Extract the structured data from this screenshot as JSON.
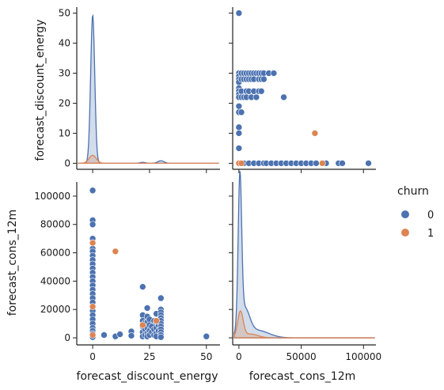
{
  "chart_data": {
    "type": "pairplot",
    "variables": [
      "forecast_discount_energy",
      "forecast_cons_12m"
    ],
    "hue": "churn",
    "legend": {
      "title": "churn",
      "placement": "right",
      "entries": [
        {
          "label": "0",
          "color": "#4c72b0"
        },
        {
          "label": "1",
          "color": "#dd8452"
        }
      ]
    },
    "axes": {
      "forecast_discount_energy": {
        "label": "forecast_discount_energy",
        "range": [
          -7,
          56
        ],
        "ticks": [
          0,
          25,
          50
        ],
        "density_ticks": [
          0,
          10,
          20,
          30,
          40,
          50
        ],
        "density_range": [
          -2,
          52
        ]
      },
      "forecast_cons_12m": {
        "label": "forecast_cons_12m",
        "range": [
          -5000,
          110000
        ],
        "ticks": [
          0,
          50000,
          100000
        ],
        "y_ticks": [
          0,
          20000,
          40000,
          60000,
          80000,
          100000
        ]
      }
    },
    "series": [
      {
        "name": "0",
        "color": "#4c72b0",
        "points": [
          [
            0,
            104000
          ],
          [
            0,
            83000
          ],
          [
            0,
            80000
          ],
          [
            0,
            70000
          ],
          [
            0,
            67000
          ],
          [
            0,
            63000
          ],
          [
            0,
            61000
          ],
          [
            0,
            58000
          ],
          [
            0,
            55000
          ],
          [
            0,
            52000
          ],
          [
            0,
            49000
          ],
          [
            0,
            46000
          ],
          [
            0,
            43000
          ],
          [
            0,
            40000
          ],
          [
            0,
            37000
          ],
          [
            0,
            34000
          ],
          [
            0,
            31000
          ],
          [
            0,
            28000
          ],
          [
            0,
            25000
          ],
          [
            0,
            22000
          ],
          [
            0,
            19000
          ],
          [
            0,
            16000
          ],
          [
            0,
            13000
          ],
          [
            0,
            10000
          ],
          [
            0,
            7000
          ],
          [
            0,
            5000
          ],
          [
            0,
            3000
          ],
          [
            0,
            1500
          ],
          [
            0,
            500
          ],
          [
            5,
            2000
          ],
          [
            10,
            1000
          ],
          [
            12,
            2500
          ],
          [
            17,
            4500
          ],
          [
            17,
            1500
          ],
          [
            22,
            36000
          ],
          [
            22,
            16000
          ],
          [
            22,
            12000
          ],
          [
            22,
            8000
          ],
          [
            22,
            4000
          ],
          [
            22,
            1000
          ],
          [
            23,
            10500
          ],
          [
            23,
            6000
          ],
          [
            23,
            2000
          ],
          [
            24,
            21000
          ],
          [
            24,
            15000
          ],
          [
            24,
            11000
          ],
          [
            24,
            7000
          ],
          [
            24,
            3000
          ],
          [
            24,
            1000
          ],
          [
            25,
            13000
          ],
          [
            25,
            9000
          ],
          [
            25,
            5000
          ],
          [
            25,
            2000
          ],
          [
            26,
            8000
          ],
          [
            26,
            4000
          ],
          [
            27,
            12000
          ],
          [
            27,
            6000
          ],
          [
            27,
            2000
          ],
          [
            28,
            17000
          ],
          [
            28,
            11000
          ],
          [
            28,
            7000
          ],
          [
            28,
            3000
          ],
          [
            28,
            1000
          ],
          [
            29,
            9000
          ],
          [
            29,
            5000
          ],
          [
            30,
            28000
          ],
          [
            30,
            20000
          ],
          [
            30,
            18000
          ],
          [
            30,
            16000
          ],
          [
            30,
            14000
          ],
          [
            30,
            12000
          ],
          [
            30,
            10000
          ],
          [
            30,
            8000
          ],
          [
            30,
            6000
          ],
          [
            30,
            4000
          ],
          [
            30,
            2000
          ],
          [
            30,
            500
          ],
          [
            50,
            1000
          ]
        ]
      },
      {
        "name": "1",
        "color": "#dd8452",
        "points": [
          [
            0,
            67000
          ],
          [
            0,
            22000
          ],
          [
            0,
            2000
          ],
          [
            10,
            61000
          ],
          [
            22,
            9000
          ],
          [
            28,
            12000
          ]
        ]
      }
    ],
    "offdiag_extra": {
      "series0_upper": [
        [
          0,
          50
        ],
        [
          0,
          30
        ],
        [
          0,
          29
        ],
        [
          0,
          28
        ],
        [
          0,
          27
        ],
        [
          0,
          25
        ],
        [
          0,
          24
        ],
        [
          0,
          23
        ],
        [
          0,
          22
        ],
        [
          0,
          19
        ],
        [
          0,
          17
        ],
        [
          0,
          12
        ],
        [
          0,
          10
        ],
        [
          0,
          5
        ],
        [
          0,
          0
        ],
        [
          2000,
          30
        ],
        [
          2000,
          28
        ],
        [
          2000,
          24
        ],
        [
          2000,
          22
        ],
        [
          2000,
          17
        ],
        [
          4000,
          30
        ],
        [
          4000,
          28
        ],
        [
          4000,
          22
        ],
        [
          4000,
          0
        ],
        [
          6000,
          30
        ],
        [
          6000,
          28
        ],
        [
          6000,
          24
        ],
        [
          6000,
          22
        ],
        [
          8000,
          30
        ],
        [
          8000,
          28
        ],
        [
          8000,
          24
        ],
        [
          8000,
          0
        ],
        [
          10000,
          30
        ],
        [
          10000,
          28
        ],
        [
          10000,
          22
        ],
        [
          12000,
          30
        ],
        [
          12000,
          28
        ],
        [
          12000,
          24
        ],
        [
          12000,
          0
        ],
        [
          14000,
          30
        ],
        [
          14000,
          22
        ],
        [
          16000,
          30
        ],
        [
          16000,
          28
        ],
        [
          16000,
          24
        ],
        [
          16000,
          0
        ],
        [
          18000,
          30
        ],
        [
          18000,
          28
        ],
        [
          18000,
          24
        ],
        [
          20000,
          30
        ],
        [
          20000,
          28
        ],
        [
          20000,
          0
        ],
        [
          24000,
          30
        ],
        [
          28000,
          30
        ],
        [
          36000,
          22
        ],
        [
          22000,
          0
        ],
        [
          26000,
          0
        ],
        [
          30000,
          0
        ],
        [
          34000,
          0
        ],
        [
          38000,
          0
        ],
        [
          42000,
          0
        ],
        [
          46000,
          0
        ],
        [
          50000,
          0
        ],
        [
          54000,
          0
        ],
        [
          58000,
          0
        ],
        [
          62000,
          0
        ],
        [
          70000,
          0
        ],
        [
          80000,
          0
        ],
        [
          83000,
          0
        ],
        [
          104000,
          0
        ]
      ],
      "series1_upper": [
        [
          0,
          0
        ],
        [
          2000,
          0
        ],
        [
          61000,
          10
        ],
        [
          67000,
          0
        ]
      ]
    }
  }
}
